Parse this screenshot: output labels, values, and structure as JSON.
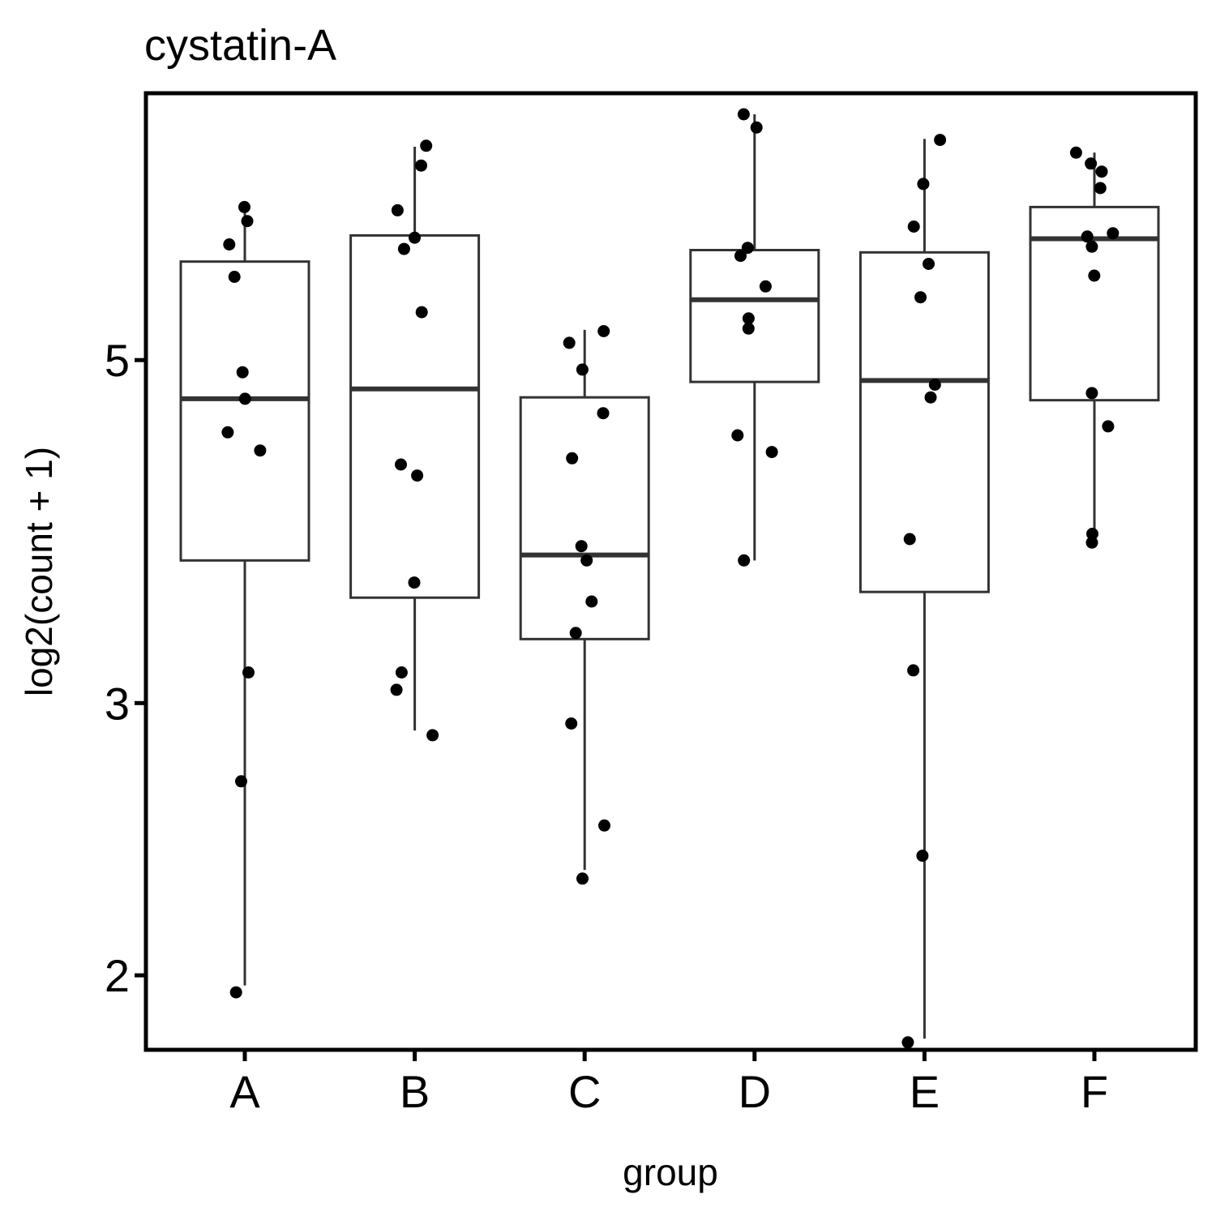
{
  "chart_data": {
    "type": "box",
    "title": "cystatin-A",
    "xlabel": "group",
    "ylabel": "log2(count + 1)",
    "y_scale": "log",
    "y_ticks": [
      2,
      3,
      5
    ],
    "ylim": [
      1.79,
      7.44
    ],
    "categories": [
      "A",
      "B",
      "C",
      "D",
      "E",
      "F"
    ],
    "boxes": [
      {
        "group": "A",
        "whisker_low": 1.97,
        "q1": 3.71,
        "median": 4.72,
        "q3": 5.79,
        "whisker_high": 6.27
      },
      {
        "group": "B",
        "whisker_low": 2.88,
        "q1": 3.51,
        "median": 4.79,
        "q3": 6.02,
        "whisker_high": 6.87
      },
      {
        "group": "C",
        "whisker_low": 2.34,
        "q1": 3.3,
        "median": 3.74,
        "q3": 4.73,
        "whisker_high": 5.23
      },
      {
        "group": "D",
        "whisker_low": 3.71,
        "q1": 4.84,
        "median": 5.47,
        "q3": 5.89,
        "whisker_high": 7.21
      },
      {
        "group": "E",
        "whisker_low": 1.82,
        "q1": 3.54,
        "median": 4.85,
        "q3": 5.87,
        "whisker_high": 6.95
      },
      {
        "group": "F",
        "whisker_low": 3.83,
        "q1": 4.71,
        "median": 5.99,
        "q3": 6.28,
        "whisker_high": 6.81
      }
    ],
    "points": [
      {
        "group": "A",
        "values": [
          6.28,
          6.15,
          5.94,
          5.66,
          4.91,
          4.72,
          4.49,
          4.37,
          3.14,
          2.67,
          1.95
        ]
      },
      {
        "group": "B",
        "values": [
          6.88,
          6.68,
          6.25,
          6.0,
          5.9,
          5.37,
          4.28,
          4.21,
          3.59,
          3.14,
          3.06,
          2.86
        ]
      },
      {
        "group": "C",
        "values": [
          5.22,
          5.13,
          4.93,
          4.62,
          4.32,
          3.79,
          3.71,
          3.49,
          3.33,
          2.91,
          2.5,
          2.31
        ]
      },
      {
        "group": "D",
        "values": [
          7.21,
          7.07,
          5.91,
          5.84,
          5.58,
          5.32,
          5.24,
          4.47,
          4.36,
          3.71
        ]
      },
      {
        "group": "E",
        "values": [
          6.94,
          6.5,
          6.1,
          5.77,
          5.49,
          4.82,
          4.73,
          3.83,
          3.15,
          2.39,
          1.81
        ]
      },
      {
        "group": "F",
        "values": [
          6.81,
          6.7,
          6.62,
          6.46,
          6.04,
          6.01,
          5.92,
          5.67,
          4.76,
          4.53,
          3.86,
          3.81
        ]
      }
    ]
  }
}
